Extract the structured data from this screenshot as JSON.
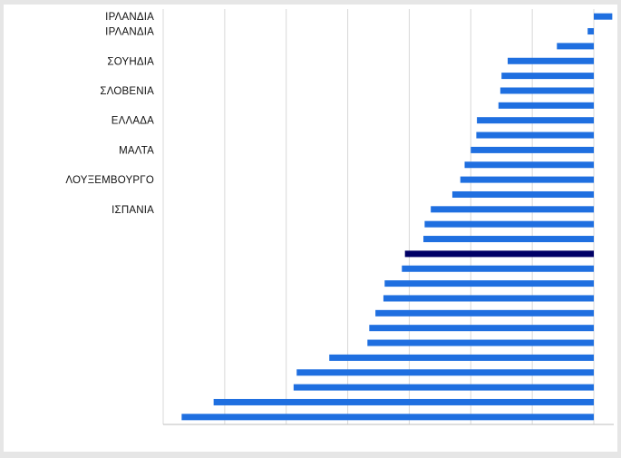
{
  "chart_data": {
    "type": "bar",
    "orientation": "horizontal",
    "title": "",
    "xlabel": "",
    "ylabel": "",
    "xlim": [
      -70,
      3
    ],
    "grid": true,
    "legend": "none",
    "colors": {
      "bar": "#1f6fe0",
      "highlight": "#000066",
      "grid": "#d8d8d8",
      "axis": "#bdbdbd"
    },
    "categories": [
      "ΙΡΛΑΝΔΙΑ",
      "ΙΡΛΑΝΔΙΑ",
      "",
      "ΣΟΥΗΔΙΑ",
      "",
      "ΣΛΟΒΕΝΙΑ",
      "",
      "ΕΛΛΑΔΑ",
      "",
      "ΜΑΛΤΑ",
      "",
      "ΛΟΥΞΕΜΒΟΥΡΓΟ",
      "",
      "ΙΣΠΑΝΙΑ",
      "",
      "",
      "",
      "",
      "",
      "",
      "",
      "",
      "",
      "",
      "",
      "",
      "",
      ""
    ],
    "values": [
      3,
      -1,
      -6,
      -14,
      -15,
      -15.2,
      -15.5,
      -19,
      -19.1,
      -20,
      -21,
      -21.7,
      -23,
      -26.5,
      -27.5,
      -27.7,
      -30.7,
      -31.2,
      -34,
      -34.2,
      -35.5,
      -36.5,
      -36.8,
      -43,
      -48.3,
      -48.8,
      -61.8,
      -67
    ],
    "highlight_index": 16
  }
}
